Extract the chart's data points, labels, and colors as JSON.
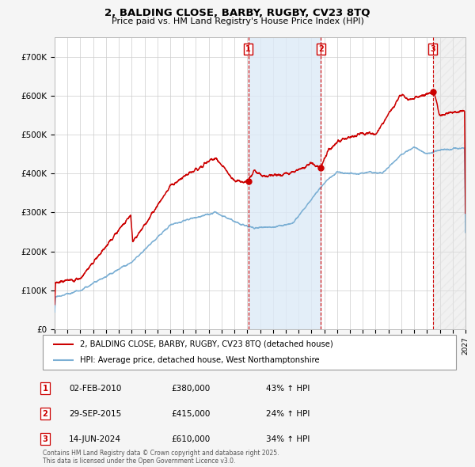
{
  "title": "2, BALDING CLOSE, BARBY, RUGBY, CV23 8TQ",
  "subtitle": "Price paid vs. HM Land Registry's House Price Index (HPI)",
  "legend_line1": "2, BALDING CLOSE, BARBY, RUGBY, CV23 8TQ (detached house)",
  "legend_line2": "HPI: Average price, detached house, West Northamptonshire",
  "red_color": "#cc0000",
  "blue_color": "#7bafd4",
  "fig_bg": "#f5f5f5",
  "plot_bg": "#ffffff",
  "grid_color": "#cccccc",
  "sale_dates_num": [
    2010.085,
    2015.745,
    2024.452
  ],
  "sale_prices": [
    380000,
    415000,
    610000
  ],
  "sale_labels": [
    "1",
    "2",
    "3"
  ],
  "sale_info": [
    {
      "label": "1",
      "date": "02-FEB-2010",
      "price": "£380,000",
      "hpi": "43% ↑ HPI"
    },
    {
      "label": "2",
      "date": "29-SEP-2015",
      "price": "£415,000",
      "hpi": "24% ↑ HPI"
    },
    {
      "label": "3",
      "date": "14-JUN-2024",
      "price": "£610,000",
      "hpi": "34% ↑ HPI"
    }
  ],
  "footer": "Contains HM Land Registry data © Crown copyright and database right 2025.\nThis data is licensed under the Open Government Licence v3.0.",
  "ylim": [
    0,
    750000
  ],
  "yticks": [
    0,
    100000,
    200000,
    300000,
    400000,
    500000,
    600000,
    700000
  ],
  "ytick_labels": [
    "£0",
    "£100K",
    "£200K",
    "£300K",
    "£400K",
    "£500K",
    "£600K",
    "£700K"
  ],
  "xlim": [
    1995,
    2027
  ],
  "xticks": [
    1995,
    1996,
    1997,
    1998,
    1999,
    2000,
    2001,
    2002,
    2003,
    2004,
    2005,
    2006,
    2007,
    2008,
    2009,
    2010,
    2011,
    2012,
    2013,
    2014,
    2015,
    2016,
    2017,
    2018,
    2019,
    2020,
    2021,
    2022,
    2023,
    2024,
    2025,
    2026,
    2027
  ]
}
